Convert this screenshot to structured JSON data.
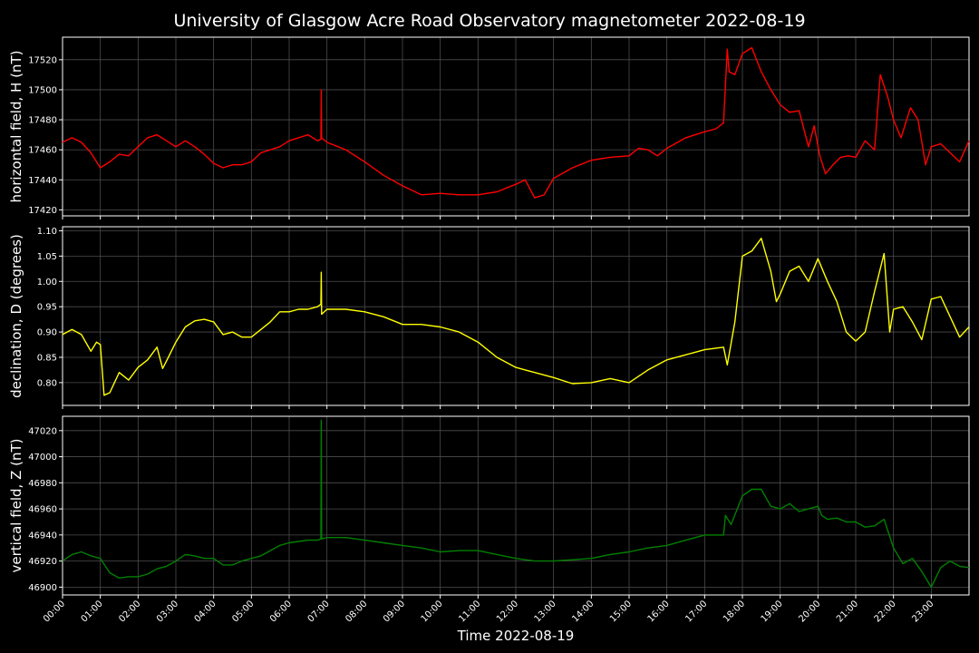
{
  "title": "University of Glasgow Acre Road Observatory magnetometer 2022-08-19",
  "xlabel": "Time 2022-08-19",
  "colors": {
    "background": "#000000",
    "grid": "#4d4d4d",
    "axis": "#ffffff"
  },
  "chart_data": {
    "type": "line",
    "x_unit": "hours",
    "xlim": [
      0,
      24
    ],
    "x_ticks": [
      0,
      1,
      2,
      3,
      4,
      5,
      6,
      7,
      8,
      9,
      10,
      11,
      12,
      13,
      14,
      15,
      16,
      17,
      18,
      19,
      20,
      21,
      22,
      23
    ],
    "x_tick_labels": [
      "00:00",
      "01:00",
      "02:00",
      "03:00",
      "04:00",
      "05:00",
      "06:00",
      "07:00",
      "08:00",
      "09:00",
      "10:00",
      "11:00",
      "12:00",
      "13:00",
      "14:00",
      "15:00",
      "16:00",
      "17:00",
      "18:00",
      "19:00",
      "20:00",
      "21:00",
      "22:00",
      "23:00"
    ],
    "grid": true,
    "panels": [
      {
        "ylabel": "horizontal field, H (nT)",
        "color": "#ff0000",
        "ylim": [
          17416,
          17535
        ],
        "y_ticks": [
          17420,
          17440,
          17460,
          17480,
          17500,
          17520
        ],
        "x": [
          0,
          0.25,
          0.5,
          0.75,
          1.0,
          1.25,
          1.5,
          1.75,
          2.0,
          2.25,
          2.5,
          2.75,
          3.0,
          3.25,
          3.5,
          3.75,
          4.0,
          4.25,
          4.5,
          4.75,
          5.0,
          5.25,
          5.5,
          5.75,
          6.0,
          6.25,
          6.5,
          6.75,
          6.84,
          6.85,
          6.86,
          7.0,
          7.5,
          8.0,
          8.5,
          9.0,
          9.5,
          10.0,
          10.5,
          11.0,
          11.5,
          12.0,
          12.25,
          12.5,
          12.75,
          13.0,
          13.5,
          14.0,
          14.5,
          15.0,
          15.25,
          15.5,
          15.75,
          16.0,
          16.5,
          17.0,
          17.3,
          17.5,
          17.6,
          17.65,
          17.8,
          18.0,
          18.25,
          18.5,
          18.75,
          19.0,
          19.25,
          19.5,
          19.75,
          19.9,
          20.05,
          20.2,
          20.4,
          20.6,
          20.8,
          21.0,
          21.25,
          21.5,
          21.65,
          21.85,
          22.0,
          22.2,
          22.45,
          22.65,
          22.85,
          23.0,
          23.25,
          23.5,
          23.75,
          24.0
        ],
        "y": [
          17465,
          17468,
          17465,
          17458,
          17448,
          17452,
          17457,
          17456,
          17462,
          17468,
          17470,
          17466,
          17462,
          17466,
          17462,
          17457,
          17451,
          17448,
          17450,
          17450,
          17452,
          17458,
          17460,
          17462,
          17466,
          17468,
          17470,
          17466,
          17467,
          17500,
          17468,
          17465,
          17460,
          17452,
          17443,
          17436,
          17430,
          17431,
          17430,
          17430,
          17432,
          17437,
          17440,
          17428,
          17430,
          17441,
          17448,
          17453,
          17455,
          17456,
          17461,
          17460,
          17456,
          17461,
          17468,
          17472,
          17474,
          17478,
          17527,
          17512,
          17510,
          17524,
          17528,
          17512,
          17500,
          17490,
          17485,
          17486,
          17462,
          17476,
          17456,
          17444,
          17450,
          17455,
          17456,
          17455,
          17466,
          17460,
          17510,
          17495,
          17480,
          17468,
          17488,
          17480,
          17450,
          17462,
          17464,
          17458,
          17452,
          17466
        ]
      },
      {
        "ylabel": "declination, D (degrees)",
        "color": "#ffff00",
        "ylim": [
          0.755,
          1.108
        ],
        "y_ticks": [
          0.8,
          0.85,
          0.9,
          0.95,
          1.0,
          1.05,
          1.1
        ],
        "y_tick_labels": [
          "0.80",
          "0.85",
          "0.90",
          "0.95",
          "1.00",
          "1.05",
          "1.10"
        ],
        "x": [
          0,
          0.25,
          0.5,
          0.75,
          0.9,
          1.0,
          1.1,
          1.25,
          1.5,
          1.75,
          2.0,
          2.25,
          2.5,
          2.65,
          2.8,
          3.0,
          3.25,
          3.5,
          3.75,
          4.0,
          4.25,
          4.5,
          4.75,
          5.0,
          5.25,
          5.5,
          5.75,
          6.0,
          6.25,
          6.5,
          6.75,
          6.84,
          6.85,
          6.86,
          7.0,
          7.5,
          8.0,
          8.5,
          9.0,
          9.5,
          10.0,
          10.5,
          11.0,
          11.5,
          12.0,
          12.25,
          12.5,
          13.0,
          13.5,
          14.0,
          14.5,
          15.0,
          15.5,
          16.0,
          16.5,
          17.0,
          17.5,
          17.6,
          17.8,
          18.0,
          18.25,
          18.5,
          18.75,
          18.9,
          19.0,
          19.25,
          19.5,
          19.75,
          20.0,
          20.25,
          20.5,
          20.75,
          21.0,
          21.25,
          21.5,
          21.75,
          21.9,
          22.0,
          22.25,
          22.5,
          22.75,
          23.0,
          23.25,
          23.5,
          23.75,
          24.0
        ],
        "y": [
          0.895,
          0.905,
          0.895,
          0.862,
          0.88,
          0.875,
          0.775,
          0.78,
          0.82,
          0.805,
          0.83,
          0.845,
          0.87,
          0.828,
          0.85,
          0.88,
          0.91,
          0.922,
          0.925,
          0.92,
          0.895,
          0.9,
          0.89,
          0.89,
          0.905,
          0.92,
          0.94,
          0.94,
          0.945,
          0.945,
          0.95,
          0.955,
          1.018,
          0.935,
          0.945,
          0.945,
          0.94,
          0.93,
          0.915,
          0.915,
          0.91,
          0.9,
          0.88,
          0.85,
          0.83,
          0.825,
          0.82,
          0.81,
          0.798,
          0.8,
          0.808,
          0.8,
          0.825,
          0.845,
          0.855,
          0.865,
          0.87,
          0.835,
          0.92,
          1.05,
          1.06,
          1.085,
          1.02,
          0.96,
          0.975,
          1.02,
          1.03,
          1.0,
          1.045,
          1.0,
          0.96,
          0.9,
          0.882,
          0.9,
          0.98,
          1.055,
          0.9,
          0.945,
          0.95,
          0.92,
          0.885,
          0.965,
          0.97,
          0.93,
          0.89,
          0.91
        ]
      },
      {
        "ylabel": "vertical field, Z (nT)",
        "color": "#008000",
        "ylim": [
          46894,
          47031
        ],
        "y_ticks": [
          46900,
          46920,
          46940,
          46960,
          46980,
          47000,
          47020
        ],
        "x": [
          0,
          0.25,
          0.5,
          0.75,
          1.0,
          1.25,
          1.5,
          1.75,
          2.0,
          2.25,
          2.5,
          2.75,
          3.0,
          3.25,
          3.5,
          3.75,
          4.0,
          4.25,
          4.5,
          4.75,
          5.0,
          5.25,
          5.5,
          5.75,
          6.0,
          6.25,
          6.5,
          6.75,
          6.84,
          6.85,
          6.86,
          7.0,
          7.5,
          8.0,
          8.5,
          9.0,
          9.5,
          10.0,
          10.5,
          11.0,
          11.5,
          12.0,
          12.5,
          13.0,
          13.5,
          14.0,
          14.5,
          15.0,
          15.5,
          16.0,
          16.5,
          17.0,
          17.5,
          17.55,
          17.7,
          18.0,
          18.25,
          18.5,
          18.75,
          19.0,
          19.25,
          19.5,
          19.75,
          20.0,
          20.1,
          20.25,
          20.5,
          20.75,
          21.0,
          21.25,
          21.5,
          21.75,
          22.0,
          22.25,
          22.5,
          22.75,
          23.0,
          23.25,
          23.5,
          23.75,
          24.0
        ],
        "y": [
          46920,
          46925,
          46927,
          46924,
          46922,
          46911,
          46907,
          46908,
          46908,
          46910,
          46914,
          46916,
          46920,
          46925,
          46924,
          46922,
          46922,
          46917,
          46917,
          46920,
          46922,
          46924,
          46928,
          46932,
          46934,
          46935,
          46936,
          46936,
          46937,
          47028,
          46937,
          46938,
          46938,
          46936,
          46934,
          46932,
          46930,
          46927,
          46928,
          46928,
          46925,
          46922,
          46920,
          46920,
          46921,
          46922,
          46925,
          46927,
          46930,
          46932,
          46936,
          46940,
          46940,
          46955,
          46948,
          46970,
          46975,
          46975,
          46962,
          46960,
          46964,
          46958,
          46960,
          46962,
          46955,
          46952,
          46953,
          46950,
          46950,
          46946,
          46947,
          46952,
          46930,
          46918,
          46922,
          46912,
          46900,
          46915,
          46920,
          46916,
          46915
        ]
      }
    ]
  }
}
